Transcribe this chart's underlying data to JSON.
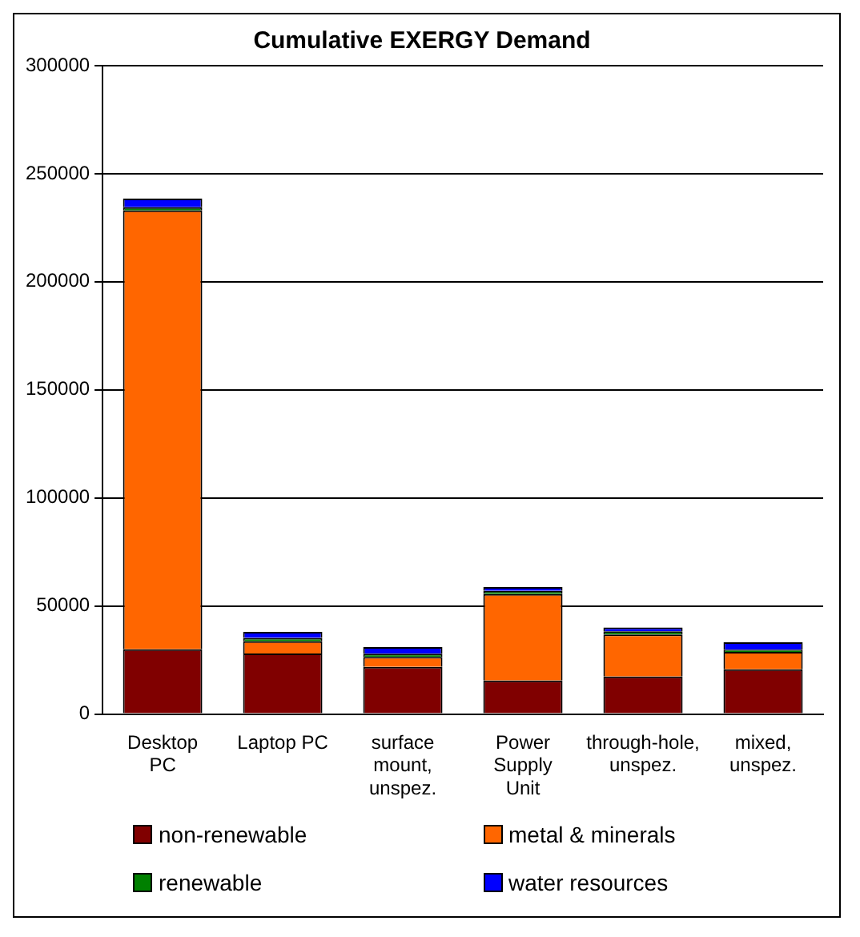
{
  "chart_data": {
    "type": "bar",
    "title": "Cumulative EXERGY Demand",
    "categories": [
      "Desktop PC",
      "Laptop PC",
      "surface mount, unspez.",
      "Power Supply Unit",
      "through-hole, unspez.",
      "mixed, unspez."
    ],
    "stacked": true,
    "series": [
      {
        "name": "non-renewable",
        "color": "#800000",
        "values": [
          30000,
          28000,
          21800,
          15500,
          17400,
          20700
        ]
      },
      {
        "name": "metal & minerals",
        "color": "#ff6600",
        "values": [
          203000,
          5700,
          4600,
          40000,
          19400,
          8100
        ]
      },
      {
        "name": "renewable",
        "color": "#008000",
        "values": [
          1500,
          1500,
          1500,
          1500,
          1500,
          1000
        ]
      },
      {
        "name": "water resources",
        "color": "#0000ff",
        "values": [
          4000,
          2800,
          3100,
          1800,
          1800,
          3400
        ]
      }
    ],
    "ylim": [
      0,
      300000
    ],
    "yticks": [
      0,
      50000,
      100000,
      150000,
      200000,
      250000,
      300000
    ],
    "grid": "y",
    "legend": "bottom"
  }
}
